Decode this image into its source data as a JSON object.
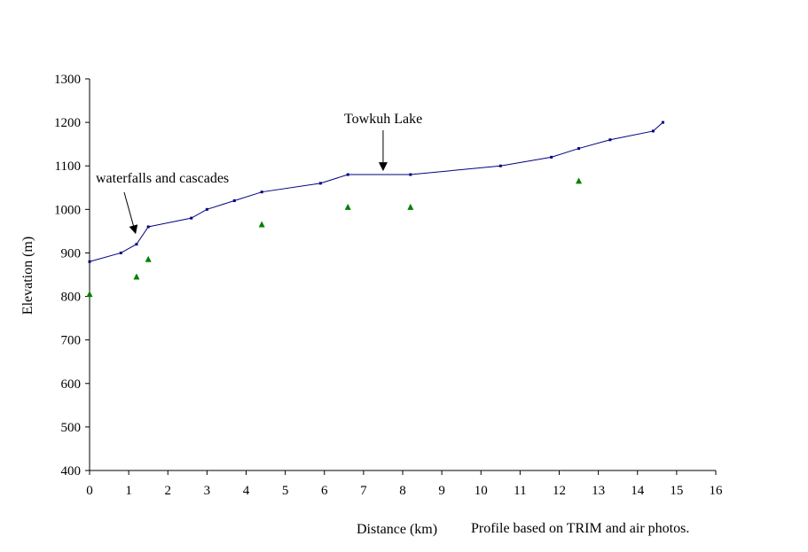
{
  "chart_data": {
    "type": "line",
    "title": "",
    "xlabel": "Distance (km)",
    "ylabel": "Elevation (m)",
    "note": "Profile based on TRIM and air photos.",
    "xlim": [
      0,
      16
    ],
    "ylim": [
      400,
      1300
    ],
    "xticks": [
      "0",
      "1",
      "2",
      "3",
      "4",
      "5",
      "6",
      "7",
      "8",
      "9",
      "10",
      "11",
      "12",
      "13",
      "14",
      "15",
      "16"
    ],
    "yticks": [
      "400",
      "500",
      "600",
      "700",
      "800",
      "900",
      "1000",
      "1100",
      "1200",
      "1300"
    ],
    "grid": false,
    "legend": "none",
    "series": [
      {
        "kind": "line",
        "color": "#000080",
        "points": [
          {
            "x": 0,
            "y": 880
          },
          {
            "x": 0.8,
            "y": 900
          },
          {
            "x": 1.2,
            "y": 920
          },
          {
            "x": 1.5,
            "y": 960
          },
          {
            "x": 2.6,
            "y": 980
          },
          {
            "x": 3.0,
            "y": 1000
          },
          {
            "x": 3.7,
            "y": 1020
          },
          {
            "x": 4.4,
            "y": 1040
          },
          {
            "x": 5.9,
            "y": 1060
          },
          {
            "x": 6.6,
            "y": 1080
          },
          {
            "x": 8.2,
            "y": 1080
          },
          {
            "x": 10.5,
            "y": 1100
          },
          {
            "x": 11.8,
            "y": 1120
          },
          {
            "x": 12.5,
            "y": 1140
          },
          {
            "x": 13.3,
            "y": 1160
          },
          {
            "x": 14.4,
            "y": 1180
          },
          {
            "x": 14.65,
            "y": 1200
          }
        ]
      },
      {
        "kind": "scatter",
        "marker": "triangle",
        "color": "#008000",
        "points": [
          {
            "x": 0,
            "y": 805
          },
          {
            "x": 1.2,
            "y": 845
          },
          {
            "x": 1.5,
            "y": 885
          },
          {
            "x": 4.4,
            "y": 965
          },
          {
            "x": 6.6,
            "y": 1005
          },
          {
            "x": 8.2,
            "y": 1005
          },
          {
            "x": 12.5,
            "y": 1065
          }
        ]
      }
    ],
    "annotations": [
      {
        "text": "waterfalls and cascades",
        "target": {
          "x": 1.1,
          "y": 935
        }
      },
      {
        "text": "Towkuh Lake",
        "target": {
          "x": 7.5,
          "y": 1090
        }
      }
    ]
  }
}
